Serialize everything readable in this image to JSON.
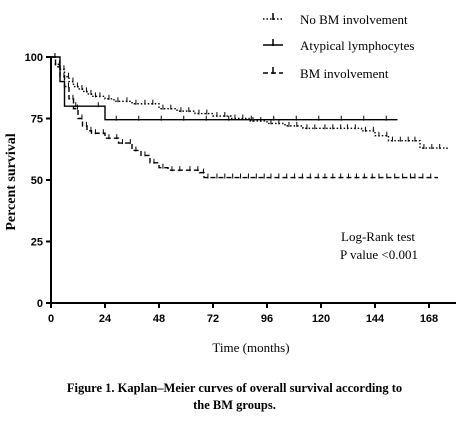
{
  "chart_data": {
    "type": "line",
    "xlabel": "Time (months)",
    "ylabel": "Percent survival",
    "xlim": [
      0,
      180
    ],
    "ylim": [
      0,
      100
    ],
    "xticks": [
      0,
      24,
      48,
      72,
      96,
      120,
      144,
      168
    ],
    "yticks": [
      0,
      25,
      50,
      75,
      100
    ],
    "legend_position": "top-right",
    "series": [
      {
        "name": "No BM involvement",
        "style": "dotted-dash",
        "points": [
          [
            0,
            100
          ],
          [
            2,
            97
          ],
          [
            4,
            95
          ],
          [
            6,
            92
          ],
          [
            8,
            90
          ],
          [
            10,
            88
          ],
          [
            12,
            87
          ],
          [
            14,
            86
          ],
          [
            16,
            85
          ],
          [
            18,
            84
          ],
          [
            20,
            84
          ],
          [
            24,
            83
          ],
          [
            28,
            82
          ],
          [
            32,
            82
          ],
          [
            36,
            81
          ],
          [
            40,
            81
          ],
          [
            48,
            79
          ],
          [
            56,
            78
          ],
          [
            64,
            77
          ],
          [
            72,
            76
          ],
          [
            80,
            75
          ],
          [
            88,
            74
          ],
          [
            96,
            73
          ],
          [
            104,
            72
          ],
          [
            112,
            71
          ],
          [
            120,
            71
          ],
          [
            130,
            71
          ],
          [
            138,
            70
          ],
          [
            144,
            68
          ],
          [
            150,
            66
          ],
          [
            160,
            66
          ],
          [
            164,
            63
          ],
          [
            176,
            62
          ]
        ]
      },
      {
        "name": "Atypical lymphocytes",
        "style": "solid",
        "points": [
          [
            0,
            100
          ],
          [
            4,
            90
          ],
          [
            6,
            80
          ],
          [
            22,
            80
          ],
          [
            24,
            74.5
          ],
          [
            154,
            74.5
          ]
        ]
      },
      {
        "name": "BM involvement",
        "style": "dashed",
        "points": [
          [
            0,
            100
          ],
          [
            2,
            96
          ],
          [
            4,
            92
          ],
          [
            6,
            88
          ],
          [
            8,
            83
          ],
          [
            10,
            79
          ],
          [
            12,
            75
          ],
          [
            14,
            72
          ],
          [
            16,
            70
          ],
          [
            18,
            69
          ],
          [
            24,
            67
          ],
          [
            30,
            65
          ],
          [
            36,
            62
          ],
          [
            40,
            60
          ],
          [
            44,
            57
          ],
          [
            48,
            55
          ],
          [
            52,
            54
          ],
          [
            60,
            54
          ],
          [
            66,
            53
          ],
          [
            68,
            51
          ],
          [
            72,
            51
          ],
          [
            96,
            51
          ],
          [
            120,
            51
          ],
          [
            144,
            51
          ],
          [
            160,
            51
          ],
          [
            172,
            51
          ]
        ]
      }
    ],
    "annotation": [
      "Log-Rank test",
      "P value <0.001"
    ]
  },
  "caption": {
    "line1": "Figure 1. Kaplan–Meier curves of overall survival according to",
    "line2": "the BM groups."
  }
}
